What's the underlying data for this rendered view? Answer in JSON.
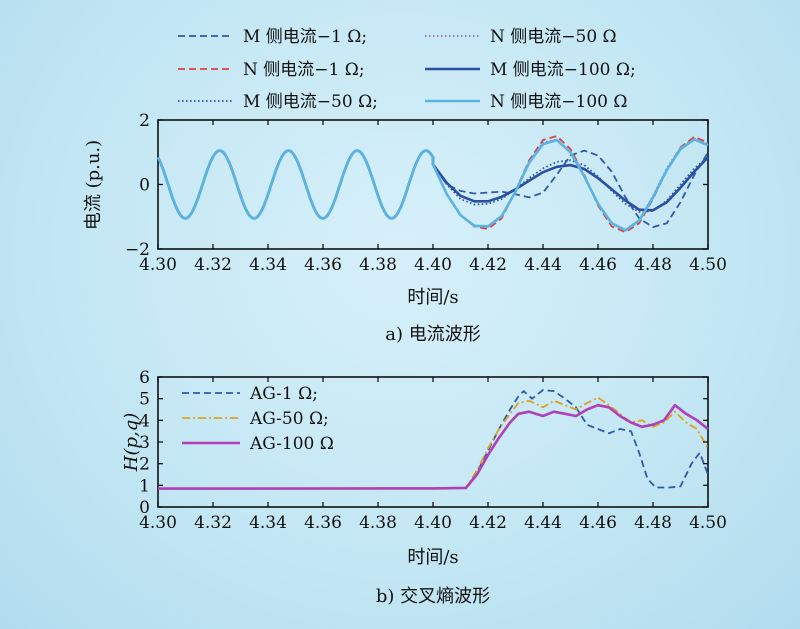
{
  "chart_data": [
    {
      "type": "line",
      "caption": "a) 电流波形",
      "xlabel": "时间/s",
      "ylabel": "电流 (p.u.)",
      "xlim": [
        4.3,
        4.5
      ],
      "ylim": [
        -2,
        2
      ],
      "xticks": [
        "4.30",
        "4.32",
        "4.34",
        "4.36",
        "4.38",
        "4.40",
        "4.42",
        "4.44",
        "4.46",
        "4.48",
        "4.50"
      ],
      "yticks": [
        "−2",
        "0",
        "2"
      ],
      "legend_position": "top, outside, two columns",
      "pre_fault": {
        "amplitude": 1.05,
        "period": 0.025,
        "value_at_4_30": 0.84
      },
      "series": [
        {
          "name": "M 侧电流−1 Ω;",
          "color": "#2e5aa8",
          "style": "dashed",
          "points": [
            [
              4.4,
              0.62
            ],
            [
              4.405,
              0.0
            ],
            [
              4.41,
              -0.2
            ],
            [
              4.415,
              -0.28
            ],
            [
              4.42,
              -0.25
            ],
            [
              4.425,
              -0.22
            ],
            [
              4.43,
              -0.3
            ],
            [
              4.435,
              -0.4
            ],
            [
              4.44,
              -0.25
            ],
            [
              4.445,
              0.3
            ],
            [
              4.45,
              0.9
            ],
            [
              4.455,
              1.05
            ],
            [
              4.46,
              0.9
            ],
            [
              4.465,
              0.4
            ],
            [
              4.47,
              -0.4
            ],
            [
              4.475,
              -1.05
            ],
            [
              4.48,
              -1.32
            ],
            [
              4.485,
              -1.2
            ],
            [
              4.49,
              -0.55
            ],
            [
              4.495,
              0.3
            ],
            [
              4.5,
              1.0
            ]
          ]
        },
        {
          "name": "N 侧电流−1 Ω;",
          "color": "#e04040",
          "style": "dashed",
          "points": [
            [
              4.4,
              0.62
            ],
            [
              4.405,
              -0.3
            ],
            [
              4.41,
              -0.95
            ],
            [
              4.415,
              -1.3
            ],
            [
              4.42,
              -1.38
            ],
            [
              4.425,
              -1.05
            ],
            [
              4.43,
              -0.2
            ],
            [
              4.435,
              0.75
            ],
            [
              4.44,
              1.38
            ],
            [
              4.445,
              1.5
            ],
            [
              4.45,
              1.1
            ],
            [
              4.455,
              0.3
            ],
            [
              4.46,
              -0.65
            ],
            [
              4.465,
              -1.3
            ],
            [
              4.47,
              -1.48
            ],
            [
              4.475,
              -1.2
            ],
            [
              4.48,
              -0.45
            ],
            [
              4.485,
              0.45
            ],
            [
              4.49,
              1.15
            ],
            [
              4.495,
              1.48
            ],
            [
              4.5,
              1.3
            ]
          ]
        },
        {
          "name": "M 侧电流−50 Ω;",
          "color": "#2e5aa8",
          "style": "dotted",
          "points": [
            [
              4.4,
              0.62
            ],
            [
              4.405,
              0.0
            ],
            [
              4.41,
              -0.45
            ],
            [
              4.415,
              -0.62
            ],
            [
              4.42,
              -0.6
            ],
            [
              4.425,
              -0.45
            ],
            [
              4.43,
              -0.15
            ],
            [
              4.435,
              0.2
            ],
            [
              4.44,
              0.5
            ],
            [
              4.445,
              0.7
            ],
            [
              4.45,
              0.75
            ],
            [
              4.455,
              0.6
            ],
            [
              4.46,
              0.25
            ],
            [
              4.465,
              -0.2
            ],
            [
              4.47,
              -0.6
            ],
            [
              4.475,
              -0.85
            ],
            [
              4.48,
              -0.82
            ],
            [
              4.485,
              -0.5
            ],
            [
              4.49,
              0.0
            ],
            [
              4.495,
              0.5
            ],
            [
              4.5,
              0.85
            ]
          ]
        },
        {
          "name": "N 侧电流−50 Ω",
          "color": "#9a6cc0",
          "style": "dotted",
          "points": [
            [
              4.4,
              0.62
            ],
            [
              4.405,
              -0.3
            ],
            [
              4.41,
              -0.95
            ],
            [
              4.415,
              -1.28
            ],
            [
              4.42,
              -1.32
            ],
            [
              4.425,
              -1.0
            ],
            [
              4.43,
              -0.2
            ],
            [
              4.435,
              0.72
            ],
            [
              4.44,
              1.3
            ],
            [
              4.445,
              1.4
            ],
            [
              4.45,
              1.0
            ],
            [
              4.455,
              0.25
            ],
            [
              4.46,
              -0.6
            ],
            [
              4.465,
              -1.2
            ],
            [
              4.47,
              -1.4
            ],
            [
              4.475,
              -1.1
            ],
            [
              4.48,
              -0.35
            ],
            [
              4.485,
              0.5
            ],
            [
              4.49,
              1.15
            ],
            [
              4.495,
              1.42
            ],
            [
              4.5,
              1.25
            ]
          ]
        },
        {
          "name": "M 侧电流−100 Ω;",
          "color": "#2d4fa0",
          "style": "solid",
          "points": [
            [
              4.4,
              0.62
            ],
            [
              4.405,
              0.05
            ],
            [
              4.41,
              -0.35
            ],
            [
              4.415,
              -0.52
            ],
            [
              4.42,
              -0.52
            ],
            [
              4.425,
              -0.38
            ],
            [
              4.43,
              -0.15
            ],
            [
              4.435,
              0.12
            ],
            [
              4.44,
              0.38
            ],
            [
              4.445,
              0.55
            ],
            [
              4.45,
              0.6
            ],
            [
              4.455,
              0.48
            ],
            [
              4.46,
              0.2
            ],
            [
              4.465,
              -0.15
            ],
            [
              4.47,
              -0.5
            ],
            [
              4.475,
              -0.78
            ],
            [
              4.48,
              -0.8
            ],
            [
              4.485,
              -0.55
            ],
            [
              4.49,
              -0.1
            ],
            [
              4.495,
              0.4
            ],
            [
              4.5,
              0.85
            ]
          ]
        },
        {
          "name": "N 侧电流−100 Ω",
          "color": "#5ab4e0",
          "style": "solid",
          "points": [
            [
              4.4,
              0.62
            ],
            [
              4.405,
              -0.3
            ],
            [
              4.41,
              -0.95
            ],
            [
              4.415,
              -1.28
            ],
            [
              4.42,
              -1.3
            ],
            [
              4.425,
              -0.98
            ],
            [
              4.43,
              -0.22
            ],
            [
              4.435,
              0.68
            ],
            [
              4.44,
              1.25
            ],
            [
              4.445,
              1.38
            ],
            [
              4.45,
              1.0
            ],
            [
              4.455,
              0.25
            ],
            [
              4.46,
              -0.6
            ],
            [
              4.465,
              -1.2
            ],
            [
              4.47,
              -1.42
            ],
            [
              4.475,
              -1.12
            ],
            [
              4.48,
              -0.4
            ],
            [
              4.485,
              0.45
            ],
            [
              4.49,
              1.1
            ],
            [
              4.495,
              1.4
            ],
            [
              4.5,
              1.22
            ]
          ]
        }
      ]
    },
    {
      "type": "line",
      "caption": "b) 交叉熵波形",
      "xlabel": "时间/s",
      "ylabel": "H(p,q)",
      "xlim": [
        4.3,
        4.5
      ],
      "ylim": [
        0,
        6
      ],
      "xticks": [
        "4.30",
        "4.32",
        "4.34",
        "4.36",
        "4.38",
        "4.40",
        "4.42",
        "4.44",
        "4.46",
        "4.48",
        "4.50"
      ],
      "yticks": [
        "0",
        "1",
        "2",
        "3",
        "4",
        "5",
        "6"
      ],
      "legend_position": "top-left",
      "series": [
        {
          "name": "AG-1 Ω;",
          "color": "#2e5aa8",
          "style": "dashed",
          "points": [
            [
              4.3,
              0.85
            ],
            [
              4.4,
              0.86
            ],
            [
              4.412,
              0.88
            ],
            [
              4.416,
              1.6
            ],
            [
              4.42,
              2.6
            ],
            [
              4.424,
              3.6
            ],
            [
              4.428,
              4.5
            ],
            [
              4.431,
              5.1
            ],
            [
              4.433,
              5.35
            ],
            [
              4.436,
              5.0
            ],
            [
              4.44,
              5.4
            ],
            [
              4.444,
              5.35
            ],
            [
              4.448,
              5.0
            ],
            [
              4.452,
              4.6
            ],
            [
              4.456,
              3.8
            ],
            [
              4.46,
              3.6
            ],
            [
              4.464,
              3.4
            ],
            [
              4.468,
              3.6
            ],
            [
              4.472,
              3.5
            ],
            [
              4.475,
              2.5
            ],
            [
              4.478,
              1.3
            ],
            [
              4.481,
              0.9
            ],
            [
              4.486,
              0.9
            ],
            [
              4.49,
              0.95
            ],
            [
              4.494,
              2.0
            ],
            [
              4.497,
              2.5
            ],
            [
              4.5,
              1.5
            ]
          ]
        },
        {
          "name": "AG-50 Ω;",
          "color": "#e0a020",
          "style": "dashdot",
          "points": [
            [
              4.3,
              0.85
            ],
            [
              4.4,
              0.86
            ],
            [
              4.412,
              0.9
            ],
            [
              4.416,
              1.7
            ],
            [
              4.42,
              2.7
            ],
            [
              4.424,
              3.6
            ],
            [
              4.428,
              4.3
            ],
            [
              4.431,
              4.8
            ],
            [
              4.435,
              4.9
            ],
            [
              4.44,
              4.6
            ],
            [
              4.444,
              4.9
            ],
            [
              4.448,
              4.7
            ],
            [
              4.452,
              4.5
            ],
            [
              4.456,
              4.8
            ],
            [
              4.46,
              5.05
            ],
            [
              4.464,
              4.7
            ],
            [
              4.468,
              4.3
            ],
            [
              4.472,
              3.9
            ],
            [
              4.476,
              4.0
            ],
            [
              4.48,
              3.7
            ],
            [
              4.484,
              3.9
            ],
            [
              4.488,
              4.4
            ],
            [
              4.492,
              3.9
            ],
            [
              4.496,
              3.6
            ],
            [
              4.5,
              2.7
            ]
          ]
        },
        {
          "name": "AG-100 Ω",
          "color": "#b040b8",
          "style": "solid",
          "points": [
            [
              4.3,
              0.85
            ],
            [
              4.4,
              0.86
            ],
            [
              4.412,
              0.88
            ],
            [
              4.416,
              1.5
            ],
            [
              4.42,
              2.4
            ],
            [
              4.424,
              3.2
            ],
            [
              4.428,
              3.9
            ],
            [
              4.431,
              4.3
            ],
            [
              4.435,
              4.4
            ],
            [
              4.44,
              4.2
            ],
            [
              4.444,
              4.4
            ],
            [
              4.448,
              4.3
            ],
            [
              4.452,
              4.2
            ],
            [
              4.456,
              4.5
            ],
            [
              4.46,
              4.7
            ],
            [
              4.464,
              4.6
            ],
            [
              4.468,
              4.2
            ],
            [
              4.472,
              3.9
            ],
            [
              4.476,
              3.7
            ],
            [
              4.48,
              3.8
            ],
            [
              4.484,
              4.0
            ],
            [
              4.488,
              4.7
            ],
            [
              4.492,
              4.3
            ],
            [
              4.496,
              4.0
            ],
            [
              4.5,
              3.6
            ]
          ]
        }
      ]
    }
  ]
}
